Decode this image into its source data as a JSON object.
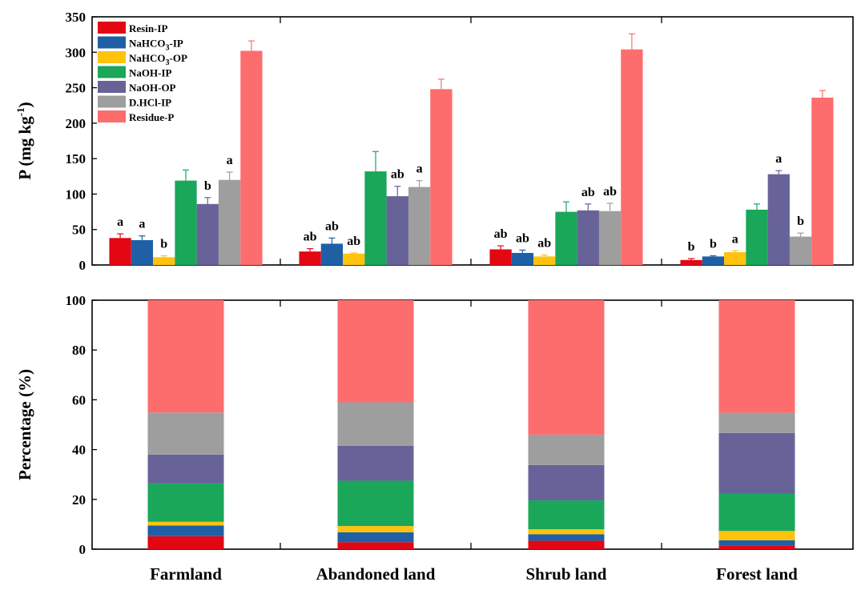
{
  "chart_data": [
    {
      "type": "bar",
      "panel": "top",
      "ylabel_main": "P (mg kg",
      "ylabel_sup": "-1",
      "ylabel_end": ")",
      "ylim": [
        0,
        350
      ],
      "yticks": [
        0,
        50,
        100,
        150,
        200,
        250,
        300,
        350
      ],
      "categories": [
        "Farmland",
        "Abandoned land",
        "Shrub land",
        "Forest land"
      ],
      "series": [
        {
          "name": "Resin-IP",
          "legend_main": "Resin-IP",
          "legend_sub": "",
          "legend_end": "",
          "color": "#e30613",
          "values": [
            38,
            19,
            22,
            7
          ],
          "errors": [
            6,
            4,
            5,
            2
          ],
          "sig": [
            "a",
            "ab",
            "ab",
            "b"
          ]
        },
        {
          "name": "NaHCO3-IP",
          "legend_main": "NaHCO",
          "legend_sub": "3",
          "legend_end": "-IP",
          "color": "#1f5fa6",
          "values": [
            35,
            30,
            17,
            12
          ],
          "errors": [
            6,
            8,
            4,
            1
          ],
          "sig": [
            "a",
            "ab",
            "ab",
            "b"
          ]
        },
        {
          "name": "NaHCO3-OP",
          "legend_main": "NaHCO",
          "legend_sub": "3",
          "legend_end": "-OP",
          "color": "#ffc20e",
          "values": [
            11,
            16,
            12,
            18
          ],
          "errors": [
            2,
            1,
            2,
            2
          ],
          "sig": [
            "b",
            "ab",
            "ab",
            "a"
          ]
        },
        {
          "name": "NaOH-IP",
          "legend_main": "NaOH-IP",
          "legend_sub": "",
          "legend_end": "",
          "color": "#1aa75a",
          "values": [
            119,
            132,
            75,
            78
          ],
          "errors": [
            15,
            28,
            14,
            8
          ],
          "sig": [
            "",
            "",
            "",
            ""
          ]
        },
        {
          "name": "NaOH-OP",
          "legend_main": "NaOH-OP",
          "legend_sub": "",
          "legend_end": "",
          "color": "#676399",
          "values": [
            86,
            97,
            77,
            128
          ],
          "errors": [
            9,
            14,
            9,
            5
          ],
          "sig": [
            "b",
            "ab",
            "ab",
            "a"
          ]
        },
        {
          "name": "D.HCl-IP",
          "legend_main": "D.HCl-IP",
          "legend_sub": "",
          "legend_end": "",
          "color": "#9e9e9e",
          "values": [
            120,
            110,
            76,
            40
          ],
          "errors": [
            11,
            9,
            11,
            5
          ],
          "sig": [
            "a",
            "a",
            "ab",
            "b"
          ]
        },
        {
          "name": "Residue-P",
          "legend_main": "Residue-P",
          "legend_sub": "",
          "legend_end": "",
          "color": "#fd6d6d",
          "values": [
            302,
            248,
            304,
            236
          ],
          "errors": [
            14,
            14,
            22,
            10
          ],
          "sig": [
            "",
            "",
            "",
            ""
          ]
        }
      ]
    },
    {
      "type": "bar",
      "stacked": true,
      "panel": "bottom",
      "ylabel": "Percentage (%)",
      "ylim": [
        0,
        100
      ],
      "yticks": [
        0,
        20,
        40,
        60,
        80,
        100
      ],
      "categories": [
        "Farmland",
        "Abandoned land",
        "Shrub land",
        "Forest land"
      ],
      "series": [
        {
          "name": "Resin-IP",
          "color": "#e30613",
          "values": [
            5.2,
            2.8,
            3.4,
            1.4
          ]
        },
        {
          "name": "NaHCO3-IP",
          "color": "#1f5fa6",
          "values": [
            4.3,
            4.0,
            2.6,
            2.2
          ]
        },
        {
          "name": "NaHCO3-OP",
          "color": "#ffc20e",
          "values": [
            1.5,
            2.5,
            2.0,
            3.7
          ]
        },
        {
          "name": "NaOH-IP",
          "color": "#1aa75a",
          "values": [
            15.4,
            18.2,
            11.6,
            14.9
          ]
        },
        {
          "name": "NaOH-OP",
          "color": "#676399",
          "values": [
            11.6,
            14.0,
            14.2,
            24.5
          ]
        },
        {
          "name": "D.HCl-IP",
          "color": "#9e9e9e",
          "values": [
            16.9,
            17.5,
            12.2,
            8.1
          ]
        },
        {
          "name": "Residue-P",
          "color": "#fd6d6d",
          "values": [
            45.1,
            41.0,
            54.0,
            45.2
          ]
        }
      ]
    }
  ]
}
